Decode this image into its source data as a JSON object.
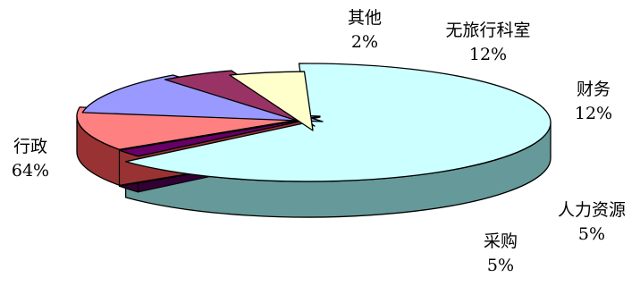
{
  "chart_data": {
    "type": "pie",
    "style": "3d-exploded",
    "slices": [
      {
        "name": "行政",
        "value": 64,
        "label": "64%",
        "color": "#CCFFFF",
        "side": "#669999"
      },
      {
        "name": "其他",
        "value": 2,
        "label": "2%",
        "color": "#660066",
        "side": "#330033"
      },
      {
        "name": "无旅行科室",
        "value": 12,
        "label": "12%",
        "color": "#FF8080",
        "side": "#993333"
      },
      {
        "name": "财务",
        "value": 12,
        "label": "12%",
        "color": "#9999FF",
        "side": "#4C4C99"
      },
      {
        "name": "人力资源",
        "value": 5,
        "label": "5%",
        "color": "#993366",
        "side": "#4C1933"
      },
      {
        "name": "采购",
        "value": 5,
        "label": "5%",
        "color": "#FFFFCC",
        "side": "#808066"
      }
    ]
  }
}
